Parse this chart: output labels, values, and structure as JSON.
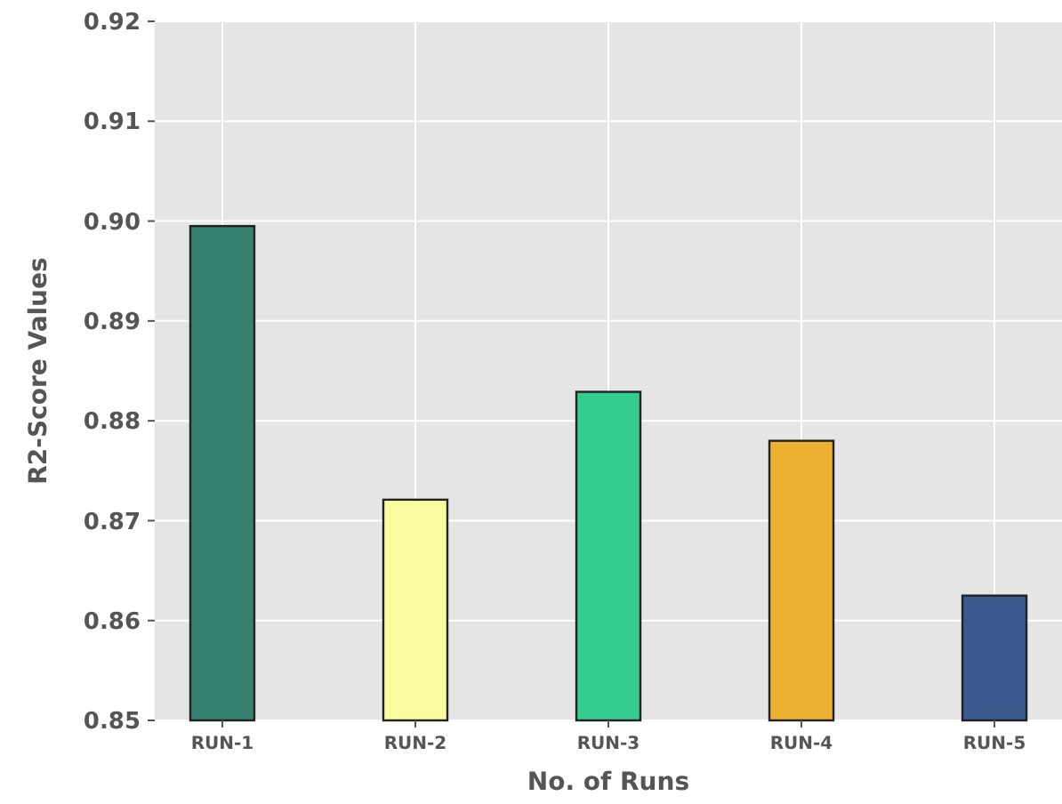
{
  "chart_data": {
    "type": "bar",
    "xlabel": "No. of Runs",
    "ylabel": "R2-Score Values",
    "categories": [
      "RUN-1",
      "RUN-2",
      "RUN-3",
      "RUN-4",
      "RUN-5"
    ],
    "values": [
      0.8995,
      0.8721,
      0.8829,
      0.878,
      0.8625
    ],
    "colors": [
      "#357f6f",
      "#fbfb9f",
      "#35cd8f",
      "#ecb133",
      "#3a5a8f"
    ],
    "ylim": [
      0.85,
      0.92
    ],
    "yticks": [
      0.85,
      0.86,
      0.87,
      0.88,
      0.89,
      {
        "value": 0.9,
        "label": "0.90"
      },
      0.91,
      0.92
    ],
    "grid": true
  }
}
